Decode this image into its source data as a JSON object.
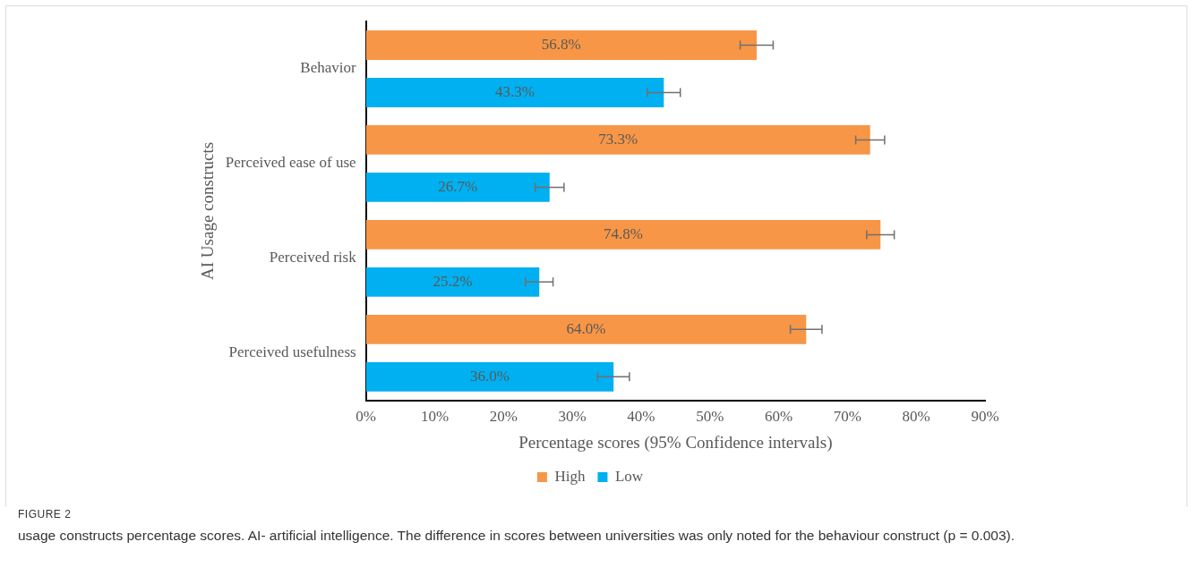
{
  "chart_data": {
    "type": "bar",
    "orientation": "horizontal",
    "ylabel": "AI Usage constructs",
    "xlabel": "Percentage scores (95% Confidence intervals)",
    "categories": [
      "Behavior",
      "Perceived ease of use",
      "Perceived risk",
      "Perceived usefulness"
    ],
    "series": [
      {
        "name": "High",
        "color": "#f79646",
        "values": [
          56.8,
          73.3,
          74.8,
          64.0
        ],
        "value_labels": [
          "56.8%",
          "73.3%",
          "74.8%",
          "64.0%"
        ],
        "errors": [
          2.4,
          2.1,
          2.0,
          2.3
        ]
      },
      {
        "name": "Low",
        "color": "#00b0f0",
        "values": [
          43.3,
          26.7,
          25.2,
          36.0
        ],
        "value_labels": [
          "43.3%",
          "26.7%",
          "25.2%",
          "36.0%"
        ],
        "errors": [
          2.4,
          2.1,
          2.0,
          2.3
        ]
      }
    ],
    "xlim": [
      0,
      90
    ],
    "xticks": [
      {
        "value": 0,
        "label": "0%"
      },
      {
        "value": 10,
        "label": "10%"
      },
      {
        "value": 20,
        "label": "20%"
      },
      {
        "value": 30,
        "label": "30%"
      },
      {
        "value": 40,
        "label": "40%"
      },
      {
        "value": 50,
        "label": "50%"
      },
      {
        "value": 60,
        "label": "60%"
      },
      {
        "value": 70,
        "label": "70%"
      },
      {
        "value": 80,
        "label": "80%"
      },
      {
        "value": 90,
        "label": "90%"
      }
    ],
    "grid": false,
    "legend": "bottom",
    "annotations": [
      "FIGURE 2",
      "usage constructs percentage scores. AI- artificial intelligence. The difference in scores between universities was only noted for the behaviour construct (p = 0.003)."
    ]
  }
}
